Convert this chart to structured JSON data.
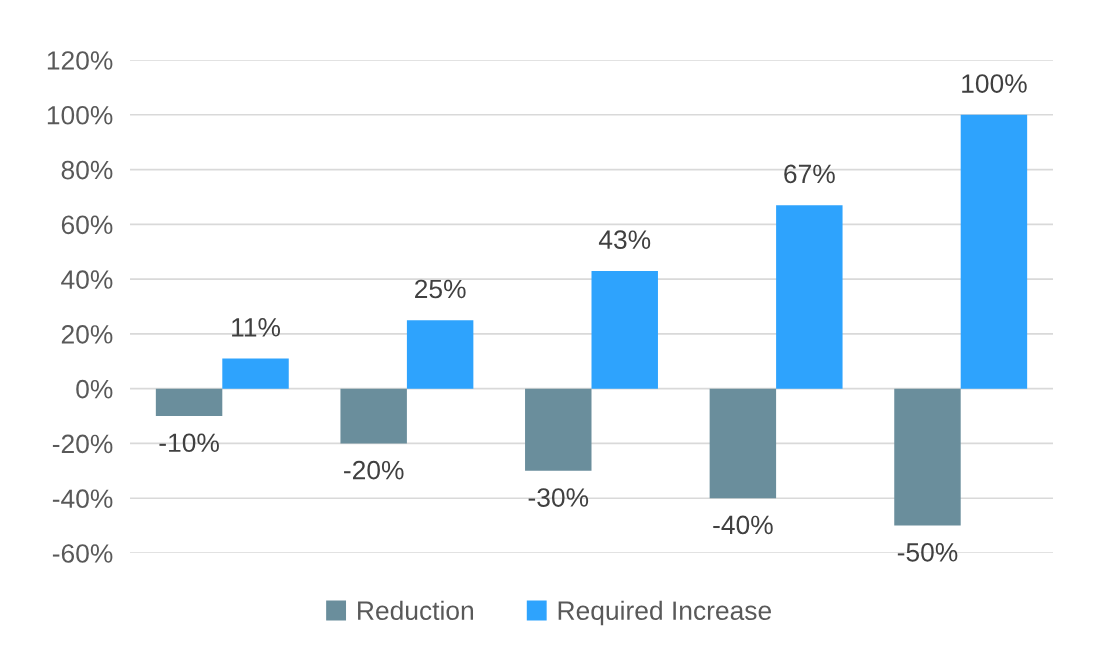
{
  "chart_data": {
    "type": "bar",
    "categories": [
      null,
      null,
      null,
      null,
      null
    ],
    "series": [
      {
        "name": "Reduction",
        "color": "#6a8e9c",
        "values": [
          -10,
          -20,
          -30,
          -40,
          -50
        ],
        "value_labels": [
          "-10%",
          "-20%",
          "-30%",
          "-40%",
          "-50%"
        ]
      },
      {
        "name": "Required Increase",
        "color": "#2ea3fd",
        "values": [
          11,
          25,
          43,
          67,
          100
        ],
        "value_labels": [
          "11%",
          "25%",
          "43%",
          "67%",
          "100%"
        ]
      }
    ],
    "ylim": [
      -60,
      120
    ],
    "yticks": [
      {
        "value": -60,
        "label": "-60%"
      },
      {
        "value": -40,
        "label": "-40%"
      },
      {
        "value": -20,
        "label": "-20%"
      },
      {
        "value": 0,
        "label": "0%"
      },
      {
        "value": 20,
        "label": "20%"
      },
      {
        "value": 40,
        "label": "40%"
      },
      {
        "value": 60,
        "label": "60%"
      },
      {
        "value": 80,
        "label": "80%"
      },
      {
        "value": 100,
        "label": "100%"
      },
      {
        "value": 120,
        "label": "120%"
      }
    ],
    "grid": "y",
    "legend": "bottom"
  }
}
